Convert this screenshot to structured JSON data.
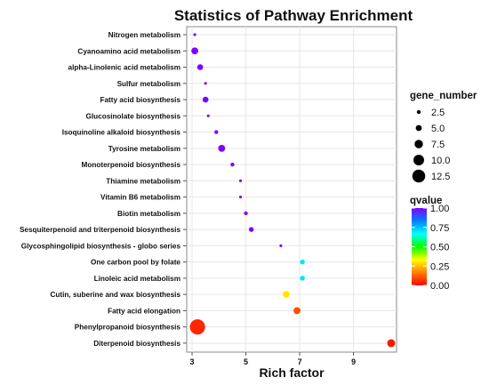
{
  "chart_data": {
    "type": "scatter",
    "title": "Statistics of Pathway Enrichment",
    "xlabel": "Rich factor",
    "ylabel": "",
    "xlim": [
      2.8,
      10.6
    ],
    "xticks": [
      "3",
      "5",
      "7",
      "9"
    ],
    "grid": true,
    "legend_position": "right",
    "pathways": [
      {
        "name": "Nitrogen metabolism",
        "rich_factor": 3.1,
        "gene_number": 1,
        "qvalue": 1.0
      },
      {
        "name": "Cyanoamino acid metabolism",
        "rich_factor": 3.1,
        "gene_number": 5,
        "qvalue": 1.0
      },
      {
        "name": "alpha-Linolenic acid metabolism",
        "rich_factor": 3.3,
        "gene_number": 4,
        "qvalue": 1.0
      },
      {
        "name": "Sulfur metabolism",
        "rich_factor": 3.5,
        "gene_number": 1,
        "qvalue": 1.0
      },
      {
        "name": "Fatty acid biosynthesis",
        "rich_factor": 3.5,
        "gene_number": 4,
        "qvalue": 1.0
      },
      {
        "name": "Glucosinolate biosynthesis",
        "rich_factor": 3.6,
        "gene_number": 1,
        "qvalue": 1.0
      },
      {
        "name": "Isoquinoline alkaloid biosynthesis",
        "rich_factor": 3.9,
        "gene_number": 2,
        "qvalue": 1.0
      },
      {
        "name": "Tyrosine metabolism",
        "rich_factor": 4.1,
        "gene_number": 5,
        "qvalue": 1.0
      },
      {
        "name": "Monoterpenoid biosynthesis",
        "rich_factor": 4.5,
        "gene_number": 2,
        "qvalue": 1.0
      },
      {
        "name": "Thiamine metabolism",
        "rich_factor": 4.8,
        "gene_number": 1,
        "qvalue": 1.0
      },
      {
        "name": "Vitamin B6 metabolism",
        "rich_factor": 4.8,
        "gene_number": 1,
        "qvalue": 1.0
      },
      {
        "name": "Biotin metabolism",
        "rich_factor": 5.0,
        "gene_number": 2,
        "qvalue": 1.0
      },
      {
        "name": "Sesquiterpenoid and triterpenoid biosynthesis",
        "rich_factor": 5.2,
        "gene_number": 3,
        "qvalue": 1.0
      },
      {
        "name": "Glycosphingolipid biosynthesis - globo series",
        "rich_factor": 6.3,
        "gene_number": 1,
        "qvalue": 1.0
      },
      {
        "name": "One carbon pool by folate",
        "rich_factor": 7.1,
        "gene_number": 3,
        "qvalue": 0.7
      },
      {
        "name": "Linoleic acid metabolism",
        "rich_factor": 7.1,
        "gene_number": 3,
        "qvalue": 0.7
      },
      {
        "name": "Cutin, suberine and wax biosynthesis",
        "rich_factor": 6.5,
        "gene_number": 5,
        "qvalue": 0.3
      },
      {
        "name": "Fatty acid elongation",
        "rich_factor": 6.9,
        "gene_number": 5,
        "qvalue": 0.1
      },
      {
        "name": "Phenylpropanoid biosynthesis",
        "rich_factor": 3.2,
        "gene_number": 13,
        "qvalue": 0.05
      },
      {
        "name": "Diterpenoid biosynthesis",
        "rich_factor": 10.4,
        "gene_number": 6,
        "qvalue": 0.03
      }
    ],
    "size_legend": {
      "title": "gene_number",
      "values": [
        2.5,
        5.0,
        7.5,
        10.0,
        12.5
      ],
      "labels": [
        "2.5",
        "5.0",
        "7.5",
        "10.0",
        "12.5"
      ]
    },
    "color_legend": {
      "title": "qvalue",
      "labels": [
        "1.00",
        "0.75",
        "0.50",
        "0.25",
        "0.00"
      ],
      "values": [
        1.0,
        0.75,
        0.5,
        0.25,
        0.0
      ],
      "colors": [
        "#ff0000",
        "#ff8000",
        "#ffff00",
        "#00ff00",
        "#00ffff",
        "#0080ff",
        "#8000ff"
      ]
    }
  }
}
